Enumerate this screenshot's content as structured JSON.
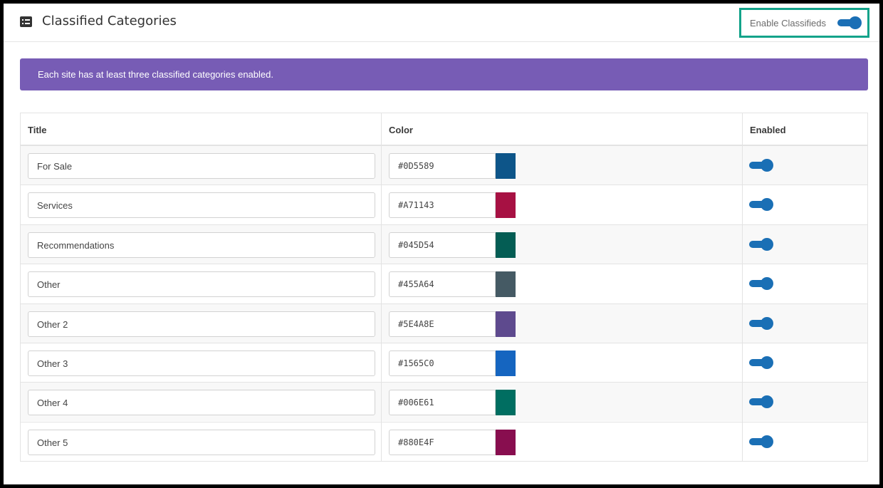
{
  "header": {
    "title": "Classified Categories",
    "enable_label": "Enable Classifieds",
    "enable_on": true
  },
  "banner": {
    "text": "Each site has at least three classified categories enabled."
  },
  "table": {
    "columns": [
      "Title",
      "Color",
      "Enabled"
    ],
    "rows": [
      {
        "title": "For Sale",
        "color": "#0D5589",
        "swatch": "#0D5589",
        "enabled": true
      },
      {
        "title": "Services",
        "color": "#A71143",
        "swatch": "#A71143",
        "enabled": true
      },
      {
        "title": "Recommendations",
        "color": "#045D54",
        "swatch": "#045D54",
        "enabled": true
      },
      {
        "title": "Other",
        "color": "#455A64",
        "swatch": "#455A64",
        "enabled": true
      },
      {
        "title": "Other 2",
        "color": "#5E4A8E",
        "swatch": "#5E4A8E",
        "enabled": true
      },
      {
        "title": "Other 3",
        "color": "#1565C0",
        "swatch": "#1565C0",
        "enabled": true
      },
      {
        "title": "Other 4",
        "color": "#006E61",
        "swatch": "#006E61",
        "enabled": true
      },
      {
        "title": "Other 5",
        "color": "#880E4F",
        "swatch": "#880E4F",
        "enabled": true
      }
    ]
  },
  "colors": {
    "accent": "#1a6fb5",
    "banner": "#775cb5",
    "highlight_border": "#13a38a"
  },
  "icons": {
    "header": "list-icon"
  }
}
